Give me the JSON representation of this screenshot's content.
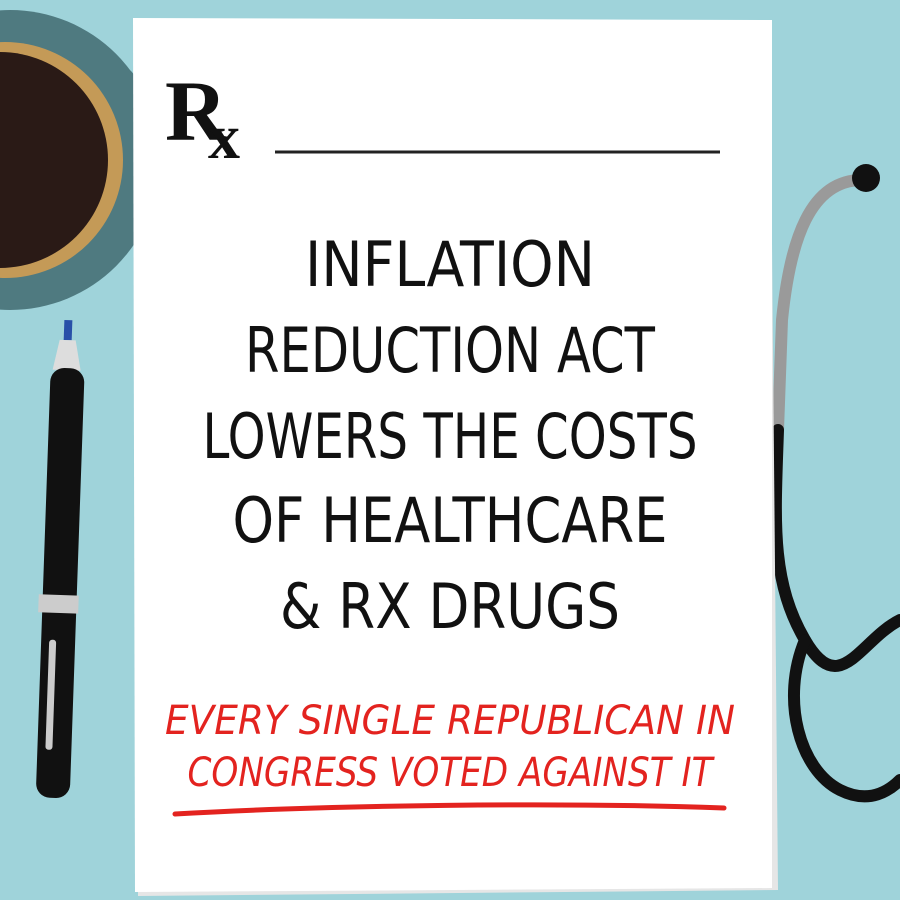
{
  "rx_symbol": {
    "r": "R",
    "x": "x"
  },
  "headline": {
    "lines": [
      "INFLATION",
      "REDUCTION ACT",
      "LOWERS THE COSTS",
      "OF HEALTHCARE",
      "& RX DRUGS"
    ]
  },
  "subline": {
    "lines": [
      "EVERY SINGLE REPUBLICAN IN",
      "CONGRESS VOTED AGAINST IT"
    ]
  }
}
